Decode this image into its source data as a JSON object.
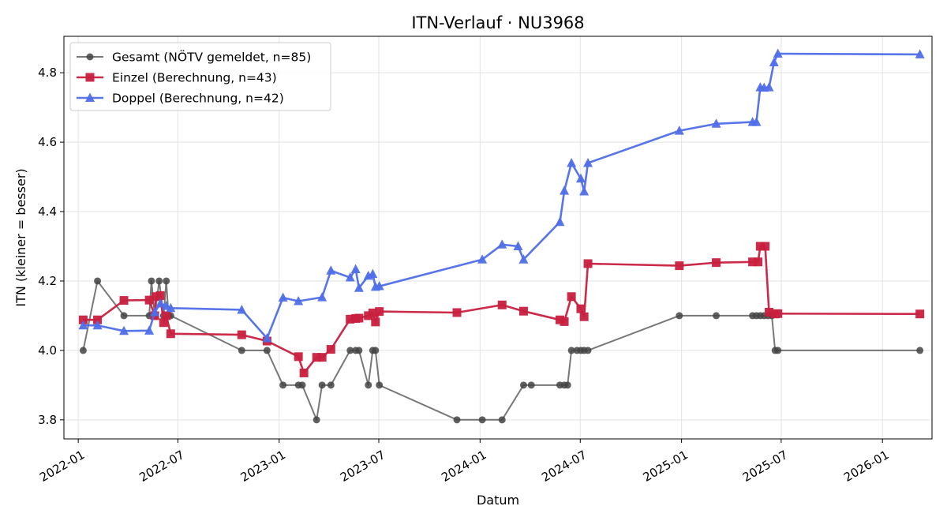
{
  "chart_data": {
    "type": "line",
    "title": "ITN-Verlauf · NU3968",
    "xlabel": "Datum",
    "ylabel": "ITN  (kleiner = besser)",
    "xlim": [
      "2021-12-06",
      "2026-04-01"
    ],
    "ylim": [
      3.745,
      4.905
    ],
    "x_ticks": [
      "2022-01",
      "2022-07",
      "2023-01",
      "2023-07",
      "2024-01",
      "2024-07",
      "2025-01",
      "2025-07",
      "2026-01"
    ],
    "y_ticks": [
      "3.8",
      "4.0",
      "4.2",
      "4.4",
      "4.6",
      "4.8"
    ],
    "grid": true,
    "legend_position": "top-left",
    "series": [
      {
        "name": "Gesamt (NÖTV gemeldet, n=85)",
        "color": "#444444",
        "marker": "circle",
        "points": [
          [
            "2022-01-10",
            4.0
          ],
          [
            "2022-02-05",
            4.2
          ],
          [
            "2022-03-25",
            4.1
          ],
          [
            "2022-05-10",
            4.1
          ],
          [
            "2022-05-14",
            4.2
          ],
          [
            "2022-05-20",
            4.1
          ],
          [
            "2022-05-28",
            4.2
          ],
          [
            "2022-06-05",
            4.1
          ],
          [
            "2022-06-10",
            4.2
          ],
          [
            "2022-06-14",
            4.1
          ],
          [
            "2022-06-18",
            4.1
          ],
          [
            "2022-10-25",
            4.0
          ],
          [
            "2022-12-10",
            4.0
          ],
          [
            "2023-01-08",
            3.9
          ],
          [
            "2023-02-05",
            3.9
          ],
          [
            "2023-02-12",
            3.9
          ],
          [
            "2023-03-10",
            3.8
          ],
          [
            "2023-03-20",
            3.9
          ],
          [
            "2023-04-05",
            3.9
          ],
          [
            "2023-05-10",
            4.0
          ],
          [
            "2023-05-20",
            4.0
          ],
          [
            "2023-05-26",
            4.0
          ],
          [
            "2023-06-12",
            3.9
          ],
          [
            "2023-06-20",
            4.0
          ],
          [
            "2023-06-25",
            4.0
          ],
          [
            "2023-07-02",
            3.9
          ],
          [
            "2023-11-20",
            3.8
          ],
          [
            "2024-01-05",
            3.8
          ],
          [
            "2024-02-10",
            3.8
          ],
          [
            "2024-03-20",
            3.9
          ],
          [
            "2024-04-03",
            3.9
          ],
          [
            "2024-05-25",
            3.9
          ],
          [
            "2024-06-02",
            3.9
          ],
          [
            "2024-06-08",
            3.9
          ],
          [
            "2024-06-15",
            4.0
          ],
          [
            "2024-06-25",
            4.0
          ],
          [
            "2024-07-02",
            4.0
          ],
          [
            "2024-07-08",
            4.0
          ],
          [
            "2024-07-15",
            4.0
          ],
          [
            "2024-12-28",
            4.1
          ],
          [
            "2025-03-05",
            4.1
          ],
          [
            "2025-05-10",
            4.1
          ],
          [
            "2025-05-17",
            4.1
          ],
          [
            "2025-05-24",
            4.1
          ],
          [
            "2025-05-31",
            4.1
          ],
          [
            "2025-06-07",
            4.1
          ],
          [
            "2025-06-14",
            4.1
          ],
          [
            "2025-06-20",
            4.0
          ],
          [
            "2025-06-25",
            4.0
          ],
          [
            "2026-03-10",
            4.0
          ]
        ]
      },
      {
        "name": "Einzel (Berechnung, n=43)",
        "color": "#c8203f",
        "marker": "square",
        "points": [
          [
            "2022-01-10",
            4.088
          ],
          [
            "2022-02-05",
            4.088
          ],
          [
            "2022-03-25",
            4.144
          ],
          [
            "2022-05-10",
            4.145
          ],
          [
            "2022-05-20",
            4.1
          ],
          [
            "2022-05-22",
            4.155
          ],
          [
            "2022-05-30",
            4.158
          ],
          [
            "2022-06-05",
            4.08
          ],
          [
            "2022-06-10",
            4.1
          ],
          [
            "2022-06-18",
            4.048
          ],
          [
            "2022-10-25",
            4.045
          ],
          [
            "2022-12-10",
            4.027
          ],
          [
            "2023-02-05",
            3.982
          ],
          [
            "2023-02-15",
            3.935
          ],
          [
            "2023-03-10",
            3.98
          ],
          [
            "2023-03-20",
            3.98
          ],
          [
            "2023-04-05",
            4.003
          ],
          [
            "2023-05-10",
            4.09
          ],
          [
            "2023-05-20",
            4.092
          ],
          [
            "2023-05-26",
            4.093
          ],
          [
            "2023-06-12",
            4.1
          ],
          [
            "2023-06-20",
            4.108
          ],
          [
            "2023-06-25",
            4.082
          ],
          [
            "2023-07-02",
            4.112
          ],
          [
            "2023-11-20",
            4.109
          ],
          [
            "2024-02-10",
            4.131
          ],
          [
            "2024-03-20",
            4.113
          ],
          [
            "2024-05-25",
            4.088
          ],
          [
            "2024-06-02",
            4.083
          ],
          [
            "2024-06-15",
            4.155
          ],
          [
            "2024-07-02",
            4.12
          ],
          [
            "2024-07-08",
            4.097
          ],
          [
            "2024-07-15",
            4.25
          ],
          [
            "2024-12-28",
            4.244
          ],
          [
            "2025-03-05",
            4.253
          ],
          [
            "2025-05-10",
            4.255
          ],
          [
            "2025-05-20",
            4.255
          ],
          [
            "2025-05-24",
            4.3
          ],
          [
            "2025-06-02",
            4.3
          ],
          [
            "2025-06-09",
            4.11
          ],
          [
            "2025-06-20",
            4.105
          ],
          [
            "2025-06-25",
            4.106
          ],
          [
            "2026-03-10",
            4.105
          ]
        ]
      },
      {
        "name": "Doppel (Berechnung, n=42)",
        "color": "#4f6ee8",
        "marker": "triangle",
        "points": [
          [
            "2022-01-10",
            4.072
          ],
          [
            "2022-02-05",
            4.072
          ],
          [
            "2022-03-25",
            4.056
          ],
          [
            "2022-05-10",
            4.057
          ],
          [
            "2022-05-20",
            4.11
          ],
          [
            "2022-05-30",
            4.135
          ],
          [
            "2022-06-10",
            4.128
          ],
          [
            "2022-06-18",
            4.122
          ],
          [
            "2022-10-25",
            4.117
          ],
          [
            "2022-12-10",
            4.035
          ],
          [
            "2023-01-08",
            4.152
          ],
          [
            "2023-02-05",
            4.142
          ],
          [
            "2023-03-20",
            4.153
          ],
          [
            "2023-04-05",
            4.23
          ],
          [
            "2023-05-10",
            4.21
          ],
          [
            "2023-05-20",
            4.234
          ],
          [
            "2023-05-26",
            4.18
          ],
          [
            "2023-06-12",
            4.215
          ],
          [
            "2023-06-20",
            4.22
          ],
          [
            "2023-06-25",
            4.183
          ],
          [
            "2023-07-02",
            4.185
          ],
          [
            "2024-01-05",
            4.262
          ],
          [
            "2024-02-10",
            4.305
          ],
          [
            "2024-03-10",
            4.3
          ],
          [
            "2024-03-20",
            4.262
          ],
          [
            "2024-05-25",
            4.37
          ],
          [
            "2024-06-02",
            4.46
          ],
          [
            "2024-06-15",
            4.54
          ],
          [
            "2024-07-02",
            4.495
          ],
          [
            "2024-07-08",
            4.458
          ],
          [
            "2024-07-15",
            4.54
          ],
          [
            "2024-12-28",
            4.633
          ],
          [
            "2025-03-05",
            4.653
          ],
          [
            "2025-05-10",
            4.658
          ],
          [
            "2025-05-17",
            4.658
          ],
          [
            "2025-05-24",
            4.758
          ],
          [
            "2025-05-31",
            4.757
          ],
          [
            "2025-06-09",
            4.758
          ],
          [
            "2025-06-18",
            4.83
          ],
          [
            "2025-06-25",
            4.855
          ],
          [
            "2026-03-10",
            4.853
          ]
        ]
      }
    ]
  }
}
